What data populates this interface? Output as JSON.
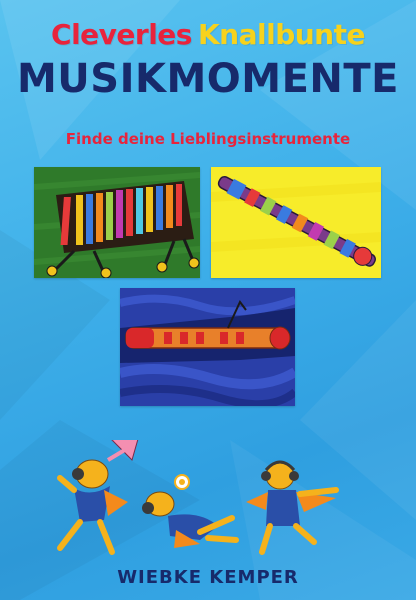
{
  "title": {
    "line1_word1": "Cleverles",
    "line1_word2": "Knallbunte",
    "line2": "MUSIKMOMENTE",
    "subtitle": "Finde deine Lieblingsinstrumente"
  },
  "author": "WIEBKE KEMPER",
  "colors": {
    "background": "#3fb0ea",
    "title_red": "#e8243c",
    "title_yellow": "#f7d21c",
    "title_navy": "#172a6b"
  },
  "illustrations": [
    "xylophone-drawing",
    "flute-drawing",
    "recorder-drawing",
    "cartoon-characters"
  ]
}
